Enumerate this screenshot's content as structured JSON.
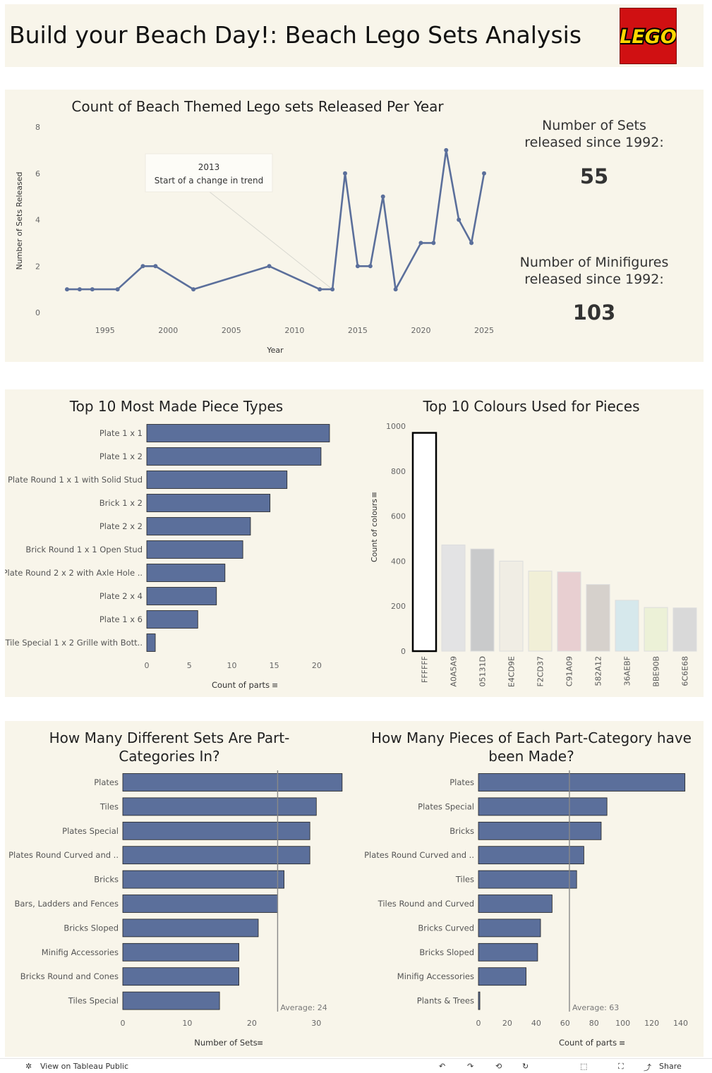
{
  "header": {
    "title": "Build your Beach Day!: Beach Lego Sets Analysis",
    "logo_text": "LEGO"
  },
  "kpis": [
    {
      "label_line1": "Number of Sets",
      "label_line2": "released since 1992:",
      "value": "55"
    },
    {
      "label_line1": "Number of Minifigures",
      "label_line2": "released since 1992:",
      "value": "103"
    }
  ],
  "chart_data": [
    {
      "type": "line",
      "title": "Count of Beach Themed Lego sets Released Per Year",
      "xlabel": "Year",
      "ylabel": "Number of Sets Released",
      "x": [
        1992,
        1993,
        1994,
        1996,
        1998,
        1999,
        2002,
        2008,
        2012,
        2013,
        2014,
        2015,
        2016,
        2017,
        2018,
        2020,
        2021,
        2022,
        2023,
        2024,
        2025
      ],
      "values": [
        1,
        1,
        1,
        1,
        2,
        2,
        1,
        2,
        1,
        1,
        6,
        2,
        2,
        5,
        1,
        3,
        3,
        7,
        4,
        3,
        6
      ],
      "xticks": [
        1995,
        2000,
        2005,
        2010,
        2015,
        2020,
        2025
      ],
      "yticks": [
        0,
        2,
        4,
        6,
        8
      ],
      "ylim": [
        0,
        8
      ],
      "color": "#5b6f9b",
      "annotation": {
        "x": 2013,
        "line1": "2013",
        "line2": "Start of a change in trend"
      }
    },
    {
      "type": "bar",
      "orientation": "horizontal",
      "title": "Top 10 Most Made Piece Types",
      "xlabel": "Count of parts",
      "categories": [
        "Plate 1 x 1",
        "Plate 1 x 2",
        "Plate Round 1 x 1 with Solid Stud",
        "Brick 1 x 2",
        "Plate 2 x 2",
        "Brick Round 1 x 1 Open Stud",
        "Plate Round 2 x 2 with Axle Hole ..",
        "Plate 2 x 4",
        "Plate 1 x 6",
        "Tile Special 1 x 2 Grille with Bott.."
      ],
      "values": [
        21.5,
        20.5,
        16.5,
        14.5,
        12.2,
        11.3,
        9.2,
        8.2,
        6.0,
        1.0
      ],
      "xticks": [
        0,
        5,
        10,
        15,
        20
      ],
      "xlim": [
        0,
        22
      ],
      "color": "#5b6f9b"
    },
    {
      "type": "bar",
      "title": "Top 10 Colours Used for Pieces",
      "ylabel": "Count of colours",
      "categories": [
        "FFFFFF",
        "A0A5A9",
        "05131D",
        "E4CD9E",
        "F2CD37",
        "C91A09",
        "582A12",
        "36AEBF",
        "BBE90B",
        "6C6E68"
      ],
      "values": [
        970,
        472,
        454,
        400,
        356,
        352,
        296,
        226,
        194,
        192
      ],
      "colors": [
        "#ffffff",
        "#e3e3e4",
        "#c9cacb",
        "#f0ede4",
        "#f1efd7",
        "#e8cfd1",
        "#d6d1cc",
        "#d6e8ec",
        "#ecf1d7",
        "#d9d9d9"
      ],
      "yticks": [
        0,
        200,
        400,
        600,
        800,
        1000
      ],
      "ylim": [
        0,
        1000
      ]
    },
    {
      "type": "bar",
      "orientation": "horizontal",
      "title": "How Many Different Sets Are Part-Categories In?",
      "xlabel": "Number of Sets",
      "categories": [
        "Plates",
        "Tiles",
        "Plates Special",
        "Plates Round Curved and ..",
        "Bricks",
        "Bars, Ladders and Fences",
        "Bricks Sloped",
        "Minifig Accessories",
        "Bricks Round and Cones",
        "Tiles Special"
      ],
      "values": [
        34,
        30,
        29,
        29,
        25,
        24,
        21,
        18,
        18,
        15
      ],
      "xticks": [
        0,
        10,
        20,
        30
      ],
      "xlim": [
        0,
        35
      ],
      "average": 24,
      "average_label": "Average: 24",
      "color": "#5b6f9b"
    },
    {
      "type": "bar",
      "orientation": "horizontal",
      "title": "How Many Pieces of Each Part-Category have been Made?",
      "xlabel": "Count of parts",
      "categories": [
        "Plates",
        "Plates Special",
        "Bricks",
        "Plates Round Curved and ..",
        "Tiles",
        "Tiles Round and Curved",
        "Bricks Curved",
        "Bricks Sloped",
        "Minifig Accessories",
        "Plants & Trees"
      ],
      "values": [
        143,
        89,
        85,
        73,
        68,
        51,
        43,
        41,
        33,
        1
      ],
      "xticks": [
        0,
        20,
        40,
        60,
        80,
        100,
        120,
        140
      ],
      "xlim": [
        0,
        150
      ],
      "average": 63,
      "average_label": "Average: 63",
      "color": "#5b6f9b"
    }
  ],
  "footer": {
    "view_label": "View on Tableau Public",
    "share_label": "Share"
  }
}
